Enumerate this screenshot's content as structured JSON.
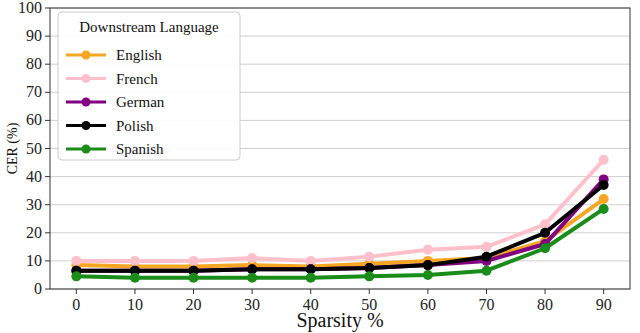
{
  "chart_data": {
    "type": "line",
    "x_label": "Sparsity %",
    "y_label": "CER (%)",
    "legend_title": "Downstream Language",
    "legend": "upper left",
    "grid": true,
    "marker": "circle",
    "x": [
      0,
      10,
      20,
      30,
      40,
      50,
      60,
      70,
      80,
      90
    ],
    "xlim": [
      -4.5,
      94.5
    ],
    "xticks": [
      0,
      10,
      20,
      30,
      40,
      50,
      60,
      70,
      80,
      90
    ],
    "ylim": [
      0,
      100
    ],
    "yticks": [
      0,
      10,
      20,
      30,
      40,
      50,
      60,
      70,
      80,
      90,
      100
    ],
    "series": [
      {
        "name": "English",
        "color": "#f5a623",
        "values": [
          8.5,
          8,
          8,
          8.5,
          8,
          9,
          10,
          11,
          17,
          32
        ]
      },
      {
        "name": "French",
        "color": "#ffc0cb",
        "values": [
          10,
          10,
          10,
          11,
          10,
          11.5,
          14,
          15,
          23,
          46
        ]
      },
      {
        "name": "German",
        "color": "#800080",
        "values": [
          6.5,
          6.5,
          6.5,
          7,
          7,
          7.5,
          8.5,
          10,
          16,
          39
        ]
      },
      {
        "name": "Polish",
        "color": "#000000",
        "values": [
          6.5,
          6.5,
          6.5,
          7,
          7,
          7.5,
          8.5,
          11.5,
          20,
          37
        ]
      },
      {
        "name": "Spanish",
        "color": "#1a8c1a",
        "values": [
          4.5,
          4,
          4,
          4,
          4,
          4.5,
          5,
          6.5,
          14.5,
          28.5
        ]
      }
    ]
  }
}
